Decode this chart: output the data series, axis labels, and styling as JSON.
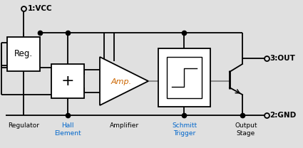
{
  "bg_color": "#e0e0e0",
  "black": "#000000",
  "gray": "#808080",
  "white": "#ffffff",
  "orange": "#cc6600",
  "blue_label": "#0066cc",
  "title_1vcc": "1:VCC",
  "title_3out": "3:OUT",
  "title_2gnd": "2:GND",
  "label_reg": "Regulator",
  "label_hall": "Hall\nElement",
  "label_amp": "Amplifier",
  "label_schmitt": "Schmitt\nTrigger",
  "label_output": "Output\nStage",
  "reg_label": "Reg.",
  "amp_label": "Amp."
}
